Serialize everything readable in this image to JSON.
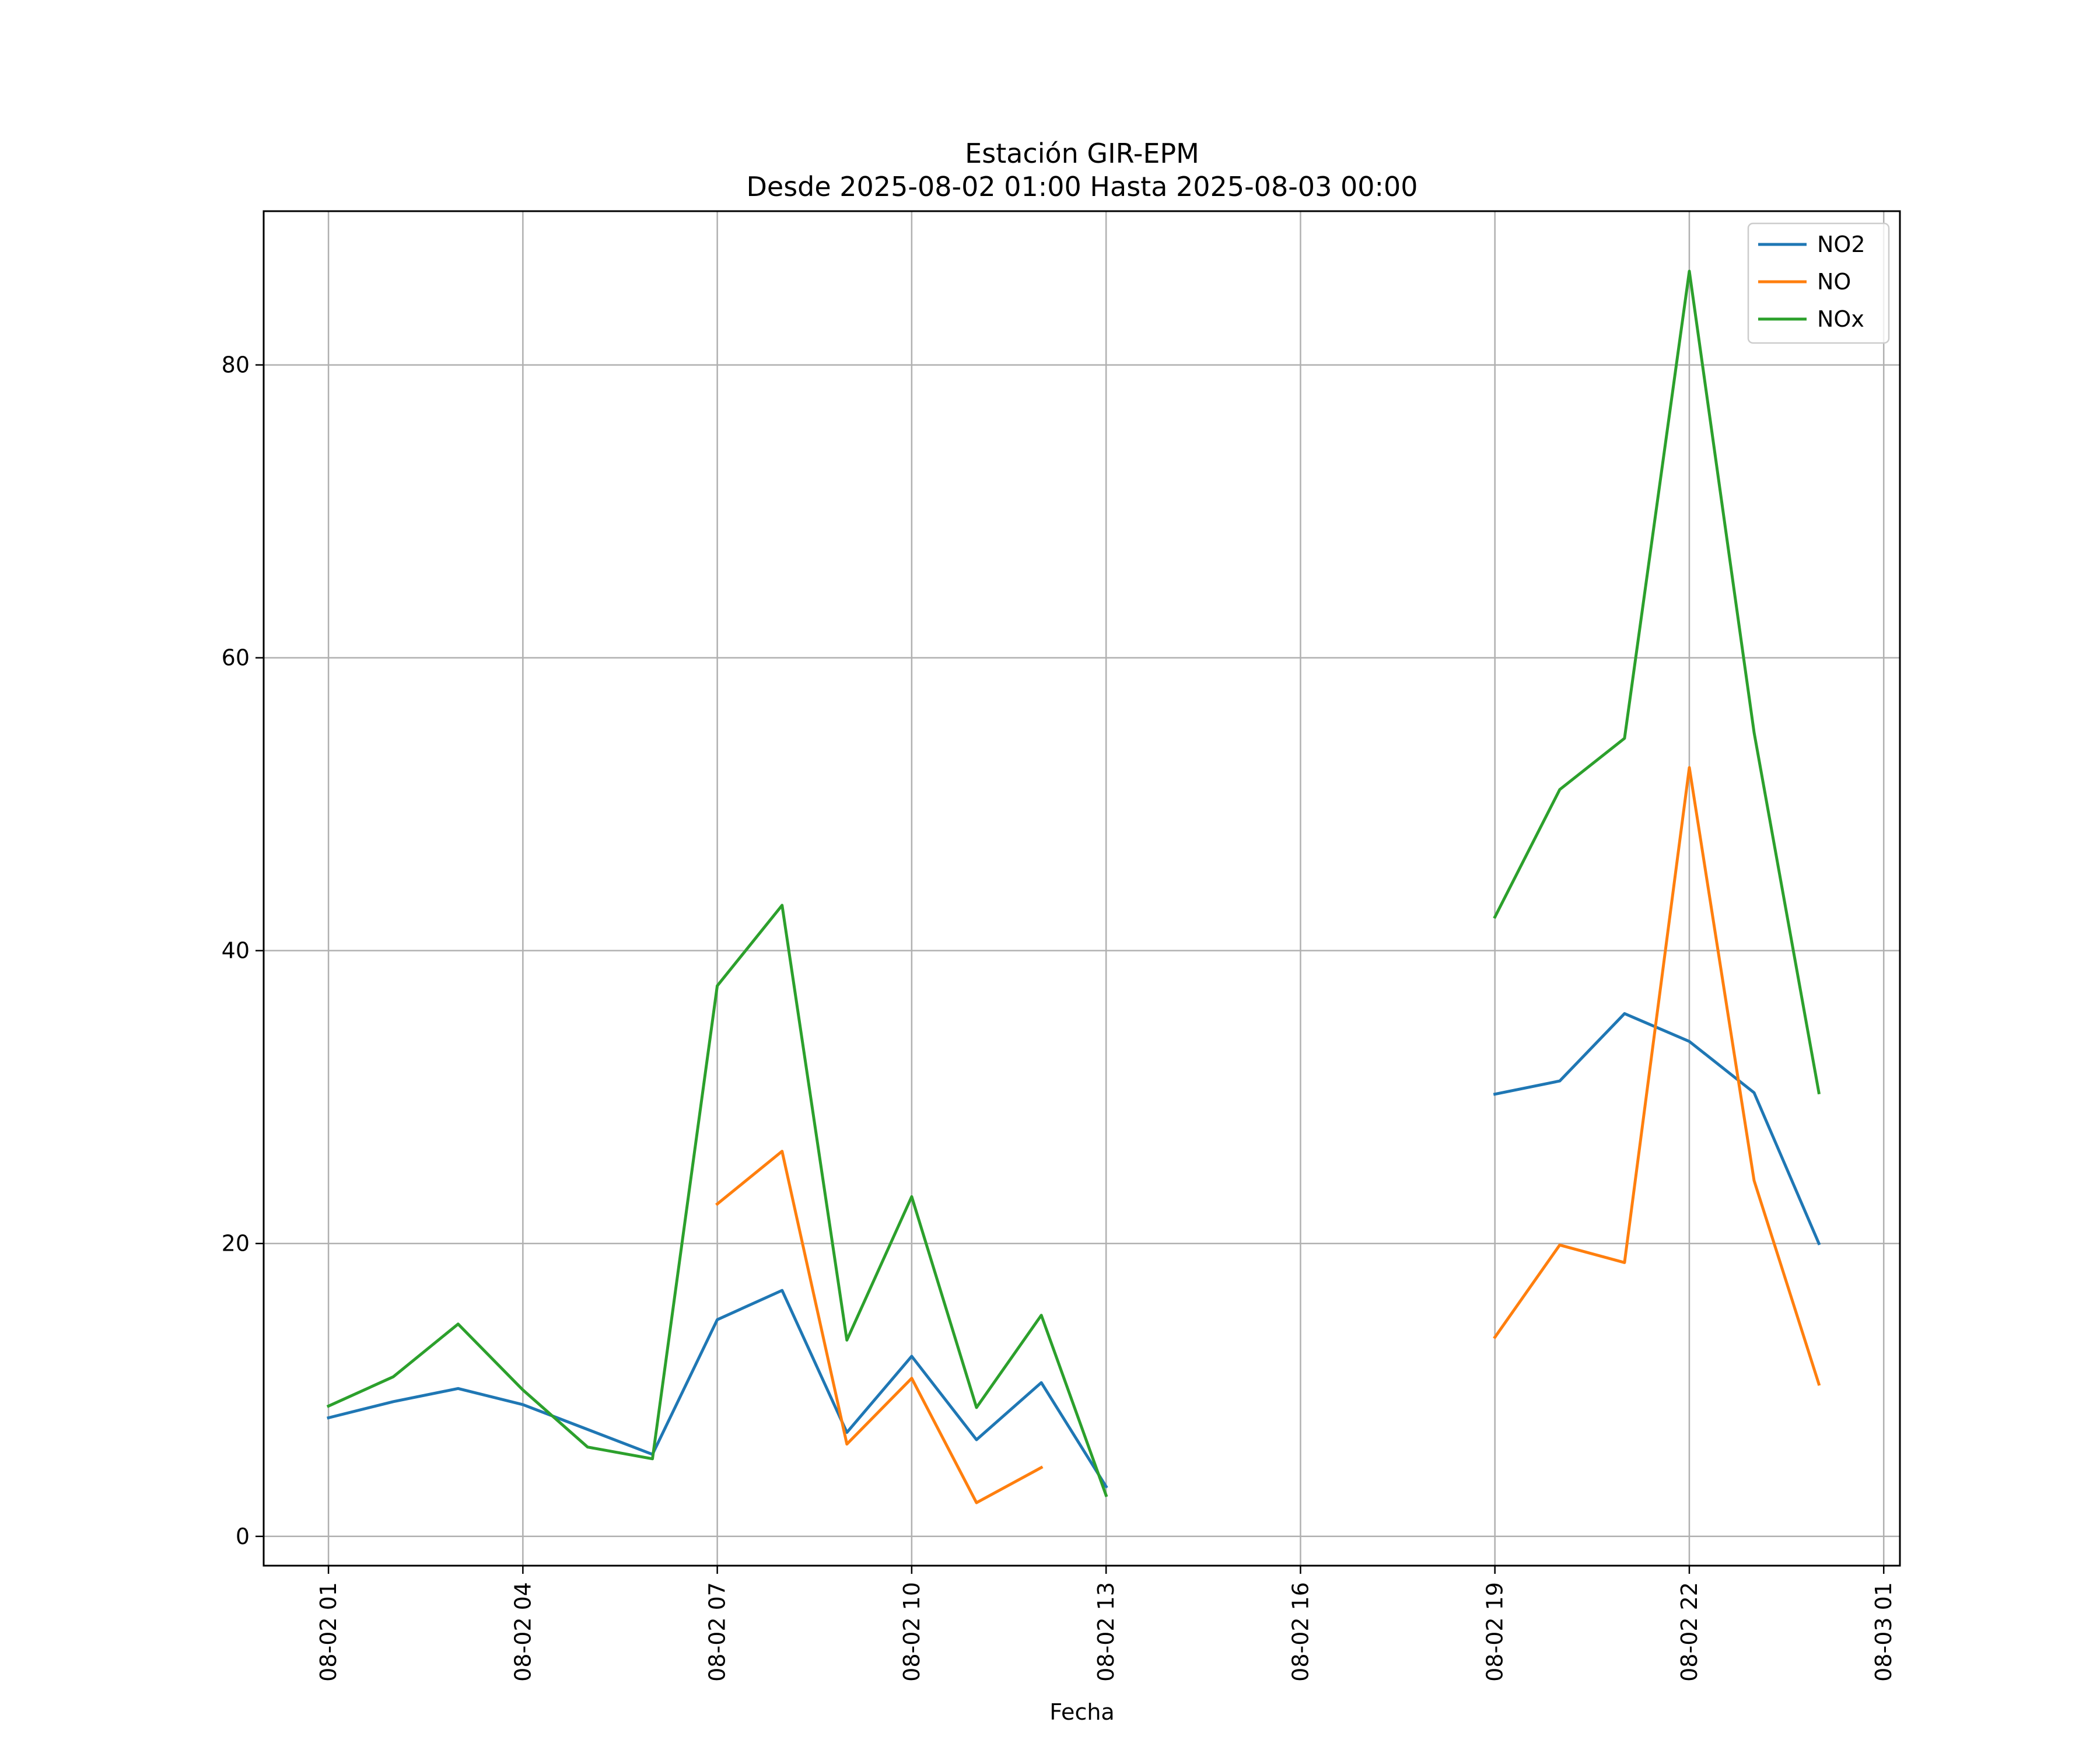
{
  "chart_data": {
    "type": "line",
    "title": "Estación GIR-EPM",
    "subtitle": "Desde 2025-08-02 01:00 Hasta 2025-08-03 00:00",
    "xlabel": "Fecha",
    "ylabel": "",
    "ylim": [
      -2,
      90.5
    ],
    "xlim": [
      "2025-08-02 00:00",
      "2025-08-03 01:15"
    ],
    "x_ticks": [
      "08-02 01",
      "08-02 04",
      "08-02 07",
      "08-02 10",
      "08-02 13",
      "08-02 16",
      "08-02 19",
      "08-02 22",
      "08-03 01"
    ],
    "y_ticks": [
      0,
      20,
      40,
      60,
      80
    ],
    "grid": true,
    "legend_position": "top-right",
    "x": [
      "2025-08-02 01:00",
      "2025-08-02 02:00",
      "2025-08-02 03:00",
      "2025-08-02 04:00",
      "2025-08-02 05:00",
      "2025-08-02 06:00",
      "2025-08-02 07:00",
      "2025-08-02 08:00",
      "2025-08-02 09:00",
      "2025-08-02 10:00",
      "2025-08-02 11:00",
      "2025-08-02 12:00",
      "2025-08-02 13:00",
      "2025-08-02 14:00",
      "2025-08-02 15:00",
      "2025-08-02 16:00",
      "2025-08-02 17:00",
      "2025-08-02 18:00",
      "2025-08-02 19:00",
      "2025-08-02 20:00",
      "2025-08-02 21:00",
      "2025-08-02 22:00",
      "2025-08-02 23:00",
      "2025-08-03 00:00"
    ],
    "series": [
      {
        "name": "NO2",
        "color": "#1f77b4",
        "values": [
          8.1,
          9.2,
          10.1,
          9.0,
          7.3,
          5.6,
          14.8,
          16.8,
          7.1,
          12.3,
          6.6,
          10.5,
          3.4,
          null,
          null,
          null,
          null,
          null,
          30.2,
          31.1,
          35.7,
          33.8,
          30.3,
          20.0
        ]
      },
      {
        "name": "NO",
        "color": "#ff7f0e",
        "values": [
          null,
          null,
          null,
          null,
          null,
          null,
          22.7,
          26.3,
          6.3,
          10.8,
          2.3,
          4.7,
          null,
          null,
          null,
          null,
          null,
          null,
          13.6,
          19.9,
          18.7,
          52.5,
          24.3,
          10.4
        ]
      },
      {
        "name": "NOx",
        "color": "#2ca02c",
        "values": [
          8.9,
          10.9,
          14.5,
          10.0,
          6.1,
          5.3,
          37.6,
          43.1,
          13.4,
          23.2,
          8.8,
          15.1,
          2.8,
          null,
          null,
          null,
          null,
          null,
          42.3,
          51.0,
          54.5,
          86.4,
          54.9,
          30.3
        ]
      }
    ]
  }
}
